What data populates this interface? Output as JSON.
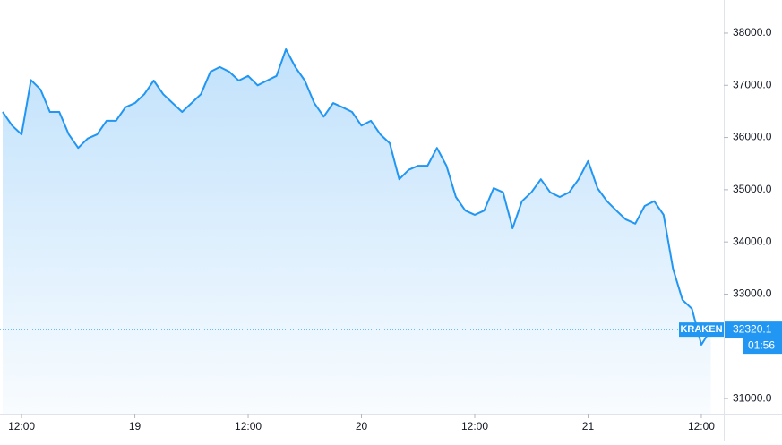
{
  "chart_data": {
    "type": "area",
    "categories": [
      null,
      null,
      "12:00",
      null,
      null,
      null,
      null,
      null,
      null,
      null,
      null,
      null,
      null,
      null,
      "19",
      null,
      null,
      null,
      null,
      null,
      null,
      null,
      null,
      null,
      null,
      null,
      "12:00",
      null,
      null,
      null,
      null,
      null,
      null,
      null,
      null,
      null,
      null,
      null,
      "20",
      null,
      null,
      null,
      null,
      null,
      null,
      null,
      null,
      null,
      null,
      null,
      "12:00",
      null,
      null,
      null,
      null,
      null,
      null,
      null,
      null,
      null,
      null,
      null,
      "21",
      null,
      null,
      null,
      null,
      null,
      null,
      null,
      null,
      null,
      null,
      null,
      "12:00",
      null
    ],
    "series": [
      {
        "color": "#2196f3",
        "values": [
          36490,
          36230,
          36060,
          37100,
          36920,
          36490,
          36490,
          36060,
          35800,
          35980,
          36060,
          36320,
          36320,
          36580,
          36660,
          36830,
          37090,
          36830,
          36660,
          36490,
          36660,
          36830,
          37260,
          37350,
          37260,
          37090,
          37180,
          37000,
          37090,
          37180,
          37690,
          37350,
          37090,
          36660,
          36400,
          36660,
          36580,
          36490,
          36230,
          36320,
          36060,
          35890,
          35200,
          35380,
          35460,
          35460,
          35800,
          35460,
          34860,
          34600,
          34520,
          34600,
          35030,
          34950,
          34260,
          34780,
          34950,
          35200,
          34950,
          34860,
          34950,
          35200,
          35550,
          35030,
          34780,
          34600,
          34430,
          34350,
          34690,
          34780,
          34520,
          33490,
          32890,
          32720,
          32030,
          32320.1
        ]
      }
    ],
    "ylim": [
      30710,
      38634
    ],
    "yticks": [
      {
        "value": 31000,
        "label": "31000.0"
      },
      {
        "value": 33000,
        "label": "33000.0"
      },
      {
        "value": 34000,
        "label": "34000.0"
      },
      {
        "value": 35000,
        "label": "35000.0"
      },
      {
        "value": 36000,
        "label": "36000.0"
      },
      {
        "value": 37000,
        "label": "37000.0"
      },
      {
        "value": 38000,
        "label": "38000.0"
      }
    ],
    "last_price": {
      "exchange": "KRAKEN",
      "value": 32320.1,
      "countdown": "01:56"
    }
  }
}
